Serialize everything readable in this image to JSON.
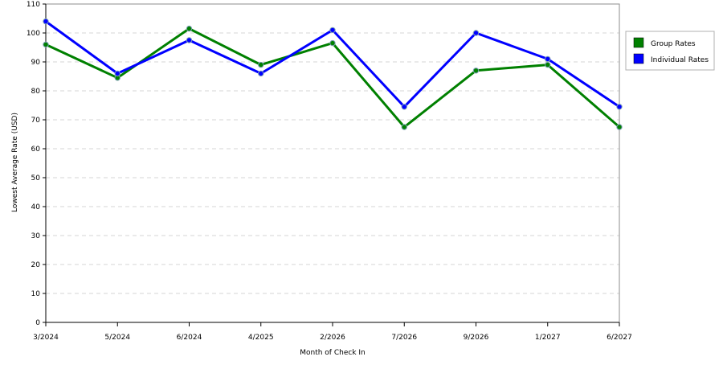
{
  "chart_data": {
    "type": "line",
    "title": "",
    "xlabel": "Month of Check In",
    "ylabel": "Lowest Average Rate (USD)",
    "categories": [
      "3/2024",
      "5/2024",
      "6/2024",
      "4/2025",
      "2/2026",
      "7/2026",
      "9/2026",
      "1/2027",
      "6/2027"
    ],
    "ylim": [
      0,
      110
    ],
    "yticks": [
      0,
      10,
      20,
      30,
      40,
      50,
      60,
      70,
      80,
      90,
      100,
      110
    ],
    "grid": true,
    "legend_position": "right",
    "series": [
      {
        "name": "Group Rates",
        "color": "#008000",
        "values": [
          96,
          84.5,
          101.5,
          89,
          96.5,
          67.5,
          87,
          89,
          67.5
        ]
      },
      {
        "name": "Individual Rates",
        "color": "#0000ff",
        "values": [
          104,
          86,
          97.5,
          86,
          101,
          74.5,
          100,
          91,
          74.5
        ]
      }
    ]
  }
}
